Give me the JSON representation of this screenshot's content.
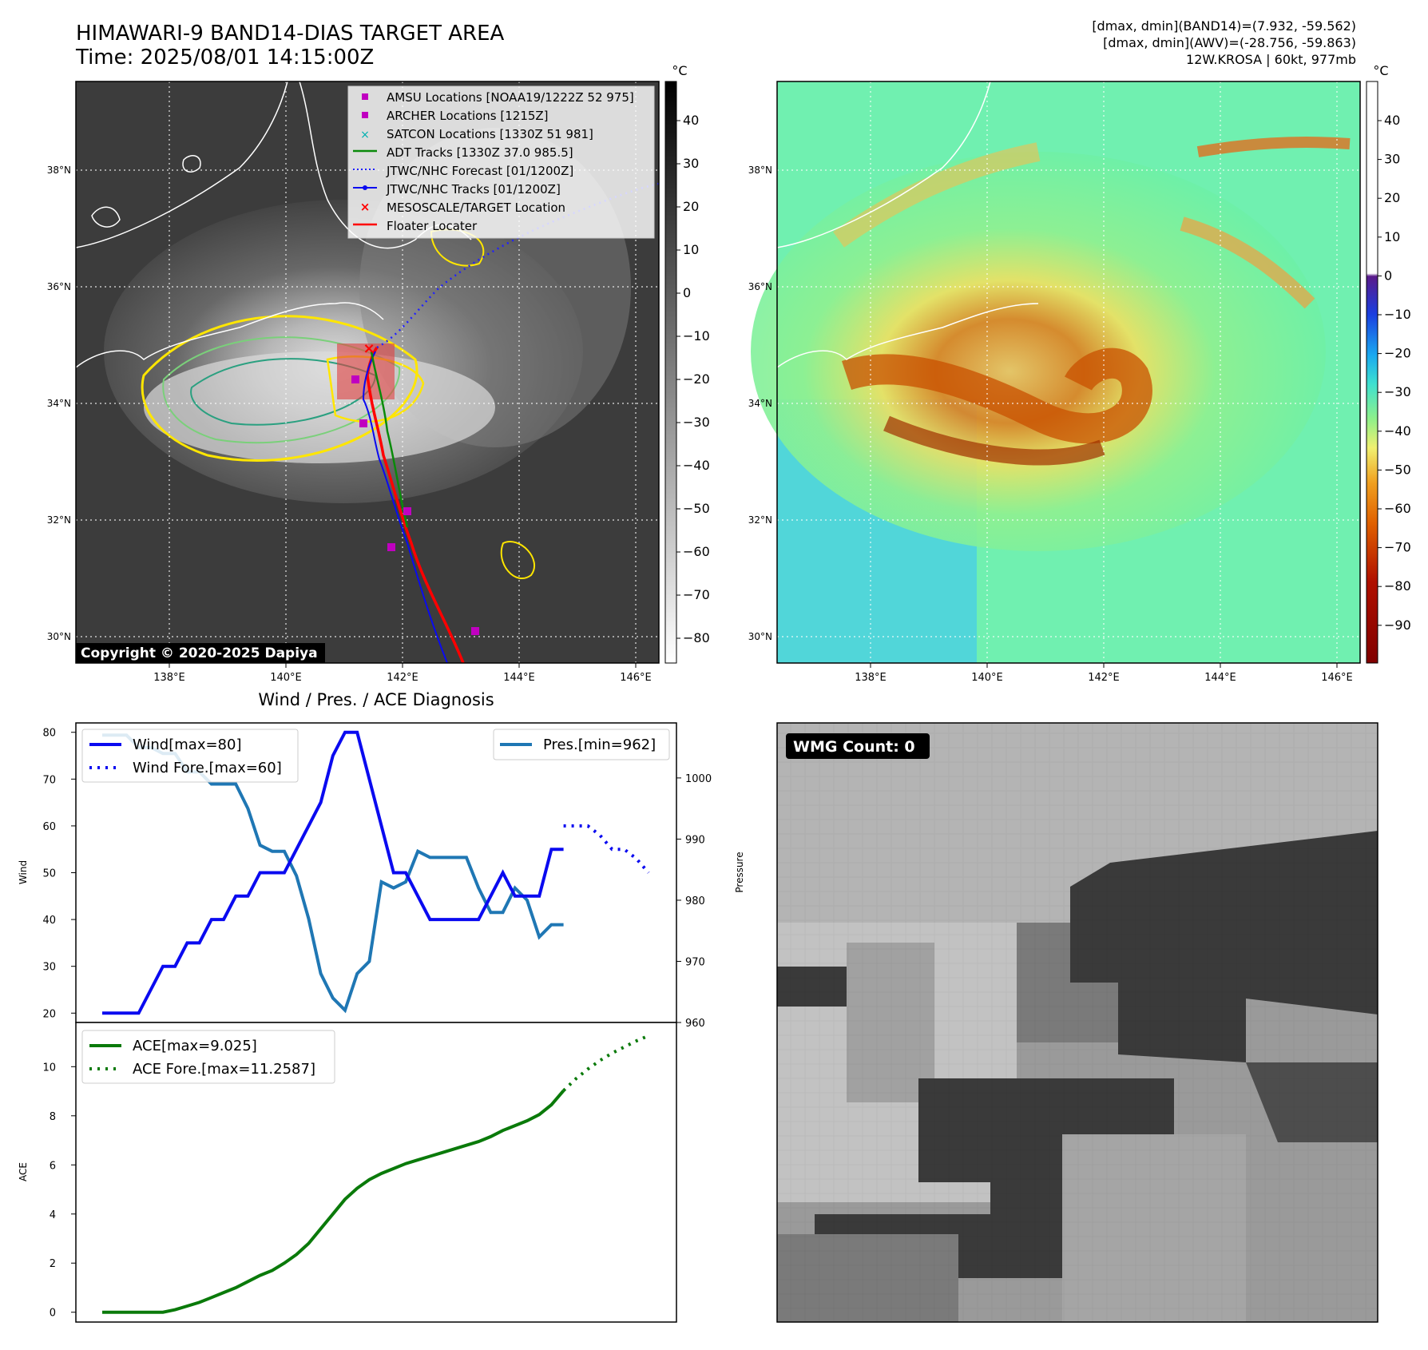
{
  "header": {
    "title": "HIMAWARI-9 BAND14-DIAS TARGET AREA",
    "time": "Time: 2025/08/01 14:15:00Z",
    "info_line1": "[dmax, dmin](BAND14)=(7.932, -59.562)",
    "info_line2": "[dmax, dmin](AWV)=(-28.756, -59.863)",
    "info_line3": "12W.KROSA | 60kt, 977mb"
  },
  "copyright": "Copyright © 2020-2025 Dapiya",
  "colorbar_unit": "°C",
  "colorbar_left_ticks": [
    "40",
    "30",
    "20",
    "10",
    "0",
    "−10",
    "−20",
    "−30",
    "−40",
    "−50",
    "−60",
    "−70",
    "−80"
  ],
  "colorbar_right_ticks": [
    "40",
    "30",
    "20",
    "10",
    "0",
    "−10",
    "−20",
    "−30",
    "−40",
    "−50",
    "−60",
    "−70",
    "−80",
    "−90"
  ],
  "map_lat_labels": [
    "38°N",
    "36°N",
    "34°N",
    "32°N",
    "30°N"
  ],
  "map_lon_labels": [
    "138°E",
    "140°E",
    "142°E",
    "144°E",
    "146°E"
  ],
  "map_legend": [
    "AMSU Locations [NOAA19/1222Z 52 975]",
    "ARCHER Locations [1215Z]",
    "SATCON Locations [1330Z 51 981]",
    "ADT Tracks [1330Z 37.0 985.5]",
    "JTWC/NHC Forecast [01/1200Z]",
    "JTWC/NHC Tracks [01/1200Z]",
    "MESOSCALE/TARGET Location",
    "Floater Locater"
  ],
  "wmg_label": "WMG Count: 0",
  "colors": {
    "wind": "#0a0af0",
    "pressure": "#1f77b4",
    "ace": "#0a7a0a",
    "legend_magenta": "#c000c0",
    "legend_cyan": "#00b0b0",
    "legend_red": "#ff0000",
    "contour_yellow": "#ffe600"
  },
  "chart_data": [
    {
      "type": "line",
      "title": "Wind / Pres. / ACE Diagnosis",
      "xlabel": "",
      "ylabel": "Wind",
      "ylabel_right": "Pressure",
      "ylim": [
        18,
        82
      ],
      "ylim_right": [
        960,
        1009
      ],
      "yticks": [
        20,
        30,
        40,
        50,
        60,
        70,
        80
      ],
      "yticks_right": [
        960,
        970,
        980,
        990,
        1000
      ],
      "legend": [
        "Wind[max=80]",
        "Wind Fore.[max=60]"
      ],
      "legend_right": [
        "Pres.[min=962]"
      ],
      "series": [
        {
          "name": "Wind[max=80]",
          "x": [
            0,
            1,
            2,
            3,
            4,
            5,
            6,
            7,
            8,
            9,
            10,
            11,
            12,
            13,
            14,
            15,
            16,
            17,
            18,
            19,
            20,
            21,
            22,
            23,
            24,
            25,
            26,
            27,
            28,
            29,
            30,
            31,
            32,
            33,
            34,
            35,
            36,
            37,
            38
          ],
          "values": [
            20,
            20,
            20,
            20,
            25,
            30,
            30,
            35,
            35,
            40,
            40,
            45,
            45,
            50,
            50,
            50,
            55,
            60,
            65,
            75,
            80,
            80,
            70,
            60,
            50,
            50,
            45,
            40,
            40,
            40,
            40,
            40,
            45,
            50,
            45,
            45,
            45,
            55,
            55
          ]
        },
        {
          "name": "Wind Fore.[max=60]",
          "x": [
            38,
            39,
            40,
            41,
            42,
            43,
            44,
            45
          ],
          "values": [
            60,
            60,
            60,
            58,
            55,
            55,
            53,
            50
          ]
        },
        {
          "name": "Pres.[min=962]",
          "x": [
            0,
            1,
            2,
            3,
            4,
            5,
            6,
            7,
            8,
            9,
            10,
            11,
            12,
            13,
            14,
            15,
            16,
            17,
            18,
            19,
            20,
            21,
            22,
            23,
            24,
            25,
            26,
            27,
            28,
            29,
            30,
            31,
            32,
            33,
            34,
            35,
            36,
            37,
            38
          ],
          "values": [
            1007,
            1007,
            1007,
            1005,
            1005,
            1004,
            1004,
            1001,
            1001,
            999,
            999,
            999,
            995,
            989,
            988,
            988,
            984,
            977,
            968,
            964,
            962,
            968,
            970,
            983,
            982,
            983,
            988,
            987,
            987,
            987,
            987,
            982,
            978,
            978,
            982,
            980,
            974,
            976,
            976
          ]
        }
      ]
    },
    {
      "type": "line",
      "ylabel": "ACE",
      "ylim": [
        -0.4,
        11.8
      ],
      "yticks": [
        0,
        2,
        4,
        6,
        8,
        10
      ],
      "legend": [
        "ACE[max=9.025]",
        "ACE Fore.[max=11.2587]"
      ],
      "series": [
        {
          "name": "ACE[max=9.025]",
          "x": [
            0,
            1,
            2,
            3,
            4,
            5,
            6,
            7,
            8,
            9,
            10,
            11,
            12,
            13,
            14,
            15,
            16,
            17,
            18,
            19,
            20,
            21,
            22,
            23,
            24,
            25,
            26,
            27,
            28,
            29,
            30,
            31,
            32,
            33,
            34,
            35,
            36,
            37,
            38
          ],
          "values": [
            0,
            0,
            0,
            0,
            0,
            0,
            0.1,
            0.25,
            0.4,
            0.6,
            0.8,
            1.0,
            1.25,
            1.5,
            1.7,
            2.0,
            2.35,
            2.8,
            3.4,
            4.0,
            4.6,
            5.05,
            5.4,
            5.65,
            5.85,
            6.05,
            6.2,
            6.35,
            6.5,
            6.65,
            6.8,
            6.95,
            7.15,
            7.4,
            7.6,
            7.8,
            8.05,
            8.45,
            9.025
          ]
        },
        {
          "name": "ACE Fore.[max=11.2587]",
          "x": [
            38,
            39,
            40,
            41,
            42,
            43,
            44,
            45
          ],
          "values": [
            9.025,
            9.5,
            9.9,
            10.25,
            10.55,
            10.8,
            11.05,
            11.2587
          ]
        }
      ]
    }
  ]
}
